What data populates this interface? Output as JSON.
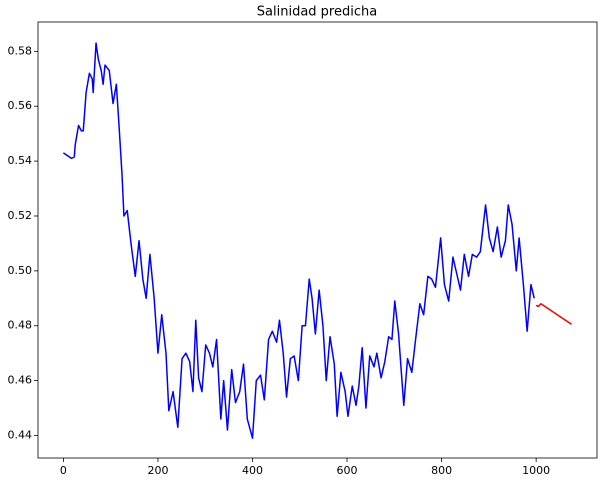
{
  "chart_data": {
    "type": "line",
    "title": "Salinidad predicha",
    "xlim": [
      -53.75,
      1128.75
    ],
    "ylim": [
      0.4318,
      0.5907
    ],
    "xticks": [
      0,
      200,
      400,
      600,
      800,
      1000
    ],
    "yticks": [
      0.44,
      0.46,
      0.48,
      {
        "value": 0.5,
        "label": "0.50"
      },
      0.52,
      0.54,
      0.56,
      0.58
    ],
    "series": [
      {
        "color": "#0000ff",
        "x": [
          0,
          17,
          23,
          25,
          32,
          38,
          42,
          48,
          55,
          61,
          63,
          69,
          74,
          80,
          84,
          88,
          97,
          105,
          112,
          118,
          124,
          128,
          135,
          143,
          152,
          160,
          168,
          175,
          183,
          192,
          200,
          208,
          217,
          223,
          232,
          242,
          251,
          259,
          267,
          274,
          280,
          286,
          293,
          301,
          309,
          316,
          324,
          333,
          339,
          347,
          356,
          364,
          373,
          381,
          389,
          400,
          408,
          417,
          425,
          434,
          442,
          451,
          457,
          465,
          472,
          480,
          488,
          497,
          505,
          512,
          520,
          526,
          533,
          541,
          549,
          556,
          564,
          573,
          579,
          587,
          596,
          602,
          611,
          619,
          625,
          632,
          640,
          648,
          657,
          663,
          672,
          680,
          688,
          695,
          701,
          709,
          720,
          728,
          737,
          745,
          754,
          762,
          771,
          779,
          787,
          798,
          806,
          815,
          824,
          832,
          840,
          848,
          857,
          865,
          874,
          882,
          893,
          901,
          909,
          918,
          926,
          935,
          941,
          949,
          958,
          964,
          973,
          981,
          989,
          996
        ],
        "values": [
          0.543,
          0.541,
          0.5415,
          0.546,
          0.553,
          0.551,
          0.551,
          0.565,
          0.572,
          0.57,
          0.565,
          0.583,
          0.577,
          0.573,
          0.568,
          0.575,
          0.573,
          0.561,
          0.568,
          0.552,
          0.535,
          0.52,
          0.522,
          0.51,
          0.498,
          0.511,
          0.497,
          0.49,
          0.506,
          0.49,
          0.47,
          0.484,
          0.47,
          0.449,
          0.456,
          0.443,
          0.468,
          0.47,
          0.467,
          0.456,
          0.482,
          0.461,
          0.456,
          0.473,
          0.47,
          0.465,
          0.475,
          0.446,
          0.46,
          0.442,
          0.464,
          0.452,
          0.456,
          0.466,
          0.446,
          0.439,
          0.46,
          0.462,
          0.453,
          0.475,
          0.478,
          0.474,
          0.482,
          0.47,
          0.454,
          0.468,
          0.469,
          0.46,
          0.48,
          0.48,
          0.497,
          0.49,
          0.477,
          0.493,
          0.48,
          0.46,
          0.476,
          0.466,
          0.447,
          0.463,
          0.456,
          0.447,
          0.458,
          0.451,
          0.458,
          0.472,
          0.45,
          0.469,
          0.465,
          0.47,
          0.461,
          0.467,
          0.476,
          0.475,
          0.489,
          0.477,
          0.451,
          0.468,
          0.463,
          0.475,
          0.488,
          0.484,
          0.498,
          0.497,
          0.494,
          0.512,
          0.495,
          0.489,
          0.505,
          0.499,
          0.493,
          0.506,
          0.498,
          0.506,
          0.505,
          0.507,
          0.524,
          0.512,
          0.507,
          0.516,
          0.505,
          0.511,
          0.524,
          0.517,
          0.5,
          0.512,
          0.495,
          0.478,
          0.495,
          0.49
        ]
      },
      {
        "color": "#ff0000",
        "x": [
          1000,
          1004,
          1010,
          1075
        ],
        "values": [
          0.4875,
          0.487,
          0.488,
          0.4805
        ]
      }
    ]
  }
}
